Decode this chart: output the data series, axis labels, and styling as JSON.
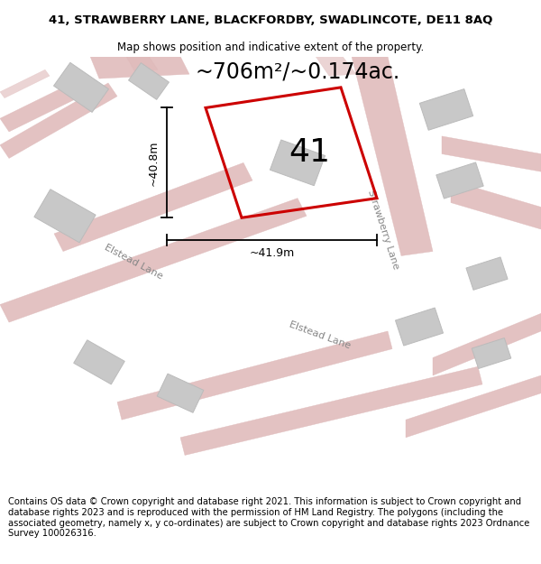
{
  "title_line1": "41, STRAWBERRY LANE, BLACKFORDBY, SWADLINCOTE, DE11 8AQ",
  "title_line2": "Map shows position and indicative extent of the property.",
  "footer": "Contains OS data © Crown copyright and database right 2021. This information is subject to Crown copyright and database rights 2023 and is reproduced with the permission of HM Land Registry. The polygons (including the associated geometry, namely x, y co-ordinates) are subject to Crown copyright and database rights 2023 Ordnance Survey 100026316.",
  "area_label": "~706m²/~0.174ac.",
  "number_label": "41",
  "dim_width": "~41.9m",
  "dim_height": "~40.8m",
  "road_label1": "Elstead Lane",
  "road_label2": "Strawberry Lane",
  "road_label3": "Elstead Lane",
  "map_bg": "#f7f2f2",
  "plot_color": "#cc0000",
  "building_color": "#c8c8c8",
  "building_edge": "#bbbbbb",
  "road_color": "#deb8b8",
  "road_edge": "#d4a0a0",
  "title_fontsize": 9.5,
  "subtitle_fontsize": 8.5,
  "footer_fontsize": 7.2,
  "area_fontsize": 17,
  "number_fontsize": 26,
  "dim_fontsize": 9,
  "road_fontsize": 8
}
